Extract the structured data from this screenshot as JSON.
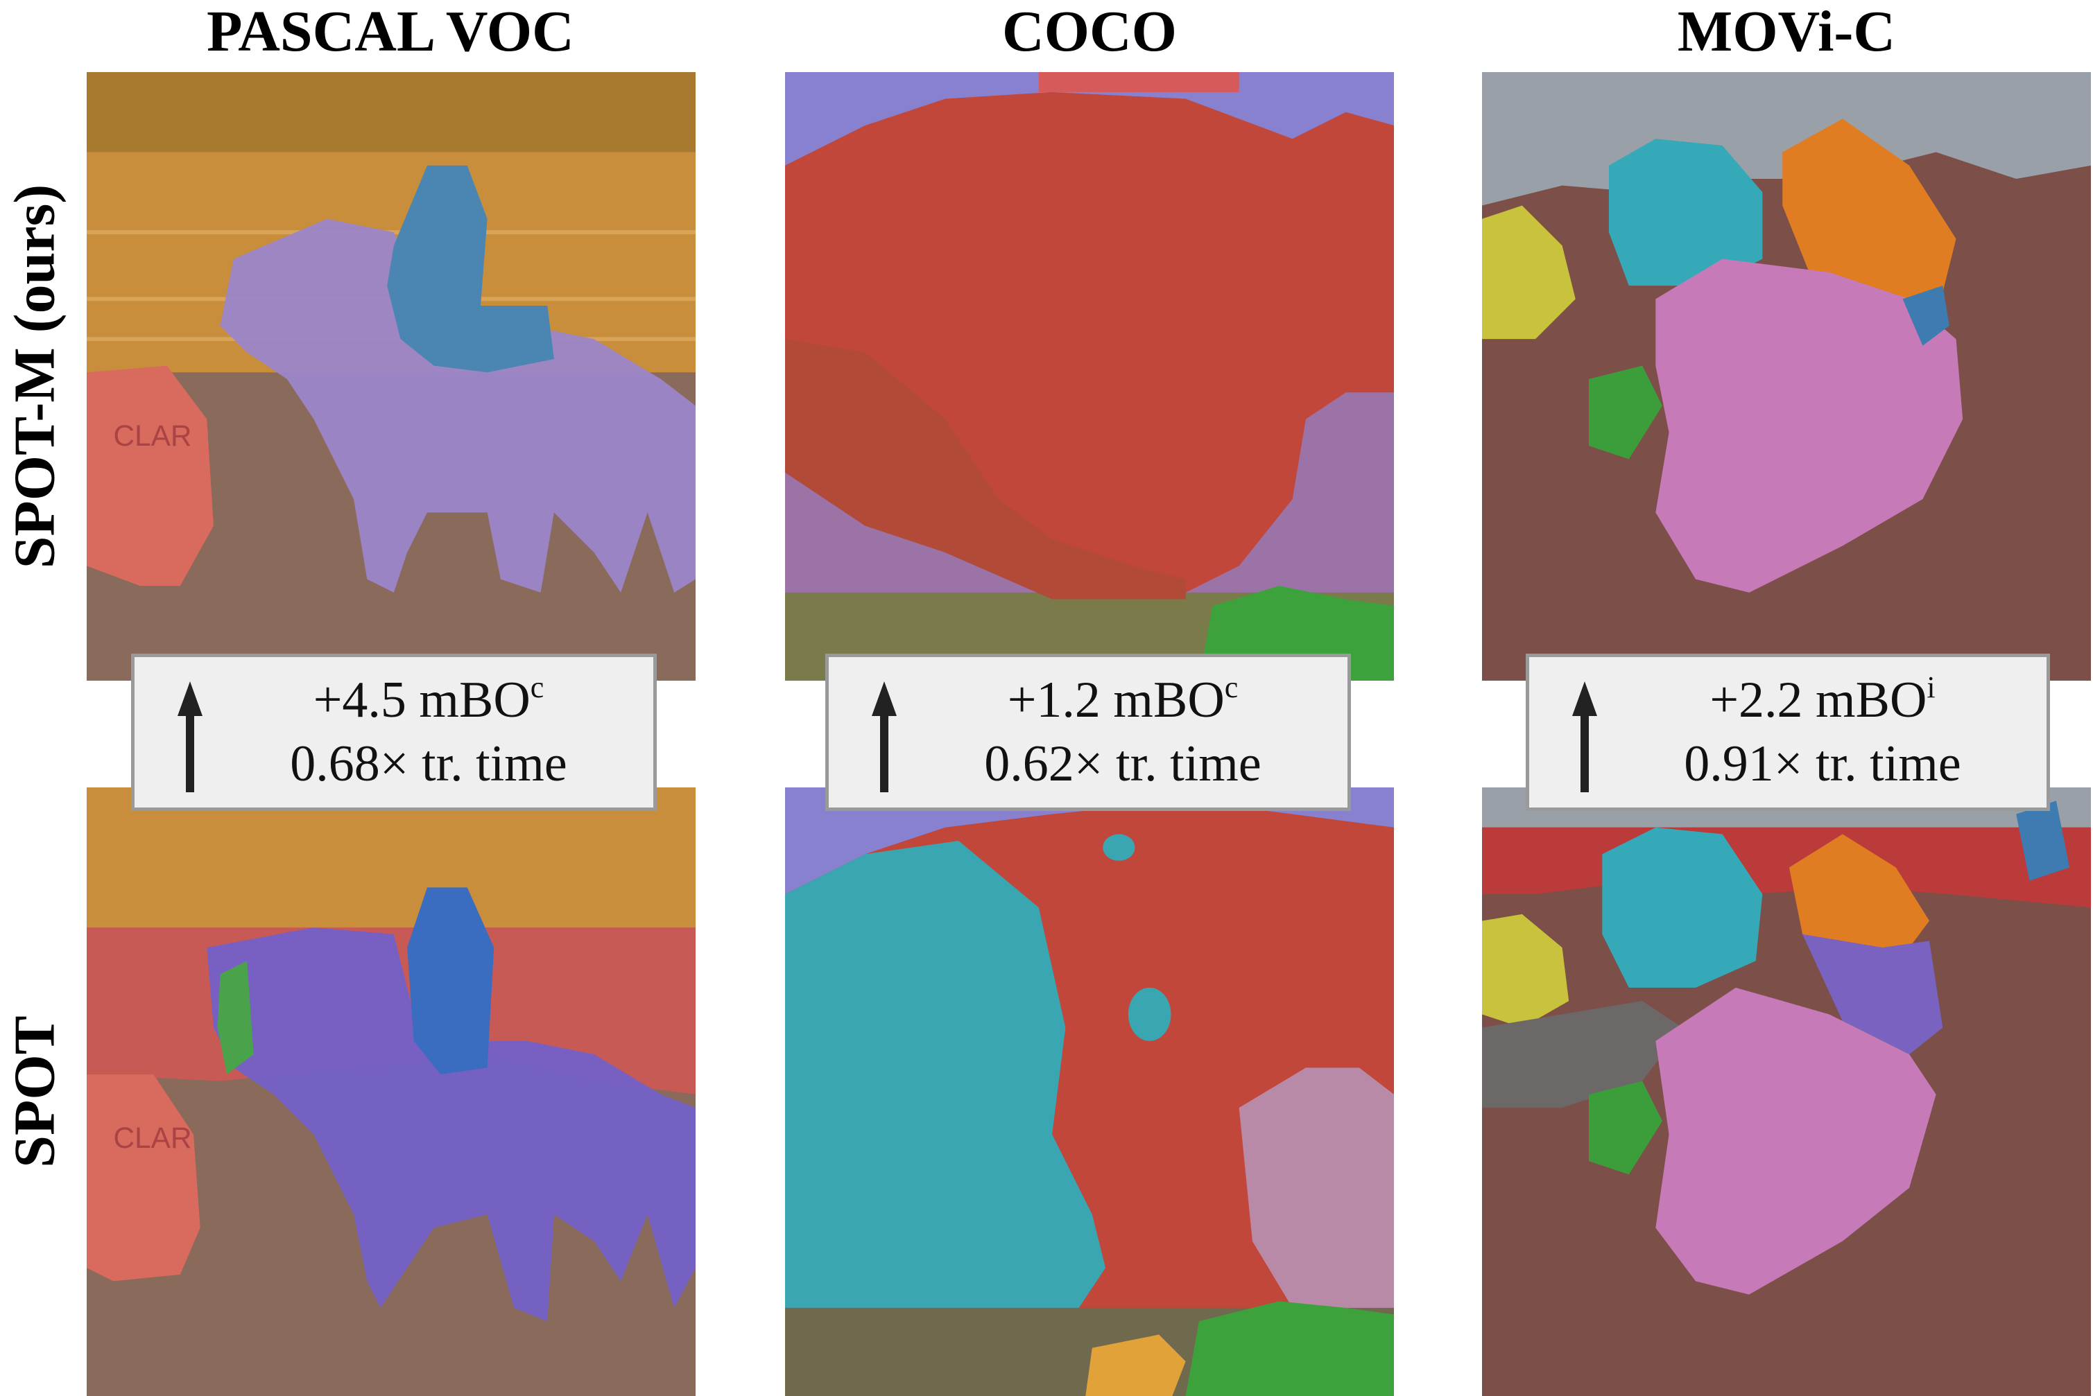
{
  "columns": [
    {
      "title": "PASCAL VOC",
      "callout": {
        "metric_value": "+4.5 mBO",
        "metric_superscript": "c",
        "time": "0.68× tr. time"
      }
    },
    {
      "title": "COCO",
      "callout": {
        "metric_value": "+1.2 mBO",
        "metric_superscript": "c",
        "time": "0.62× tr. time"
      }
    },
    {
      "title": "MOVi-C",
      "callout": {
        "metric_value": "+2.2 mBO",
        "metric_superscript": "i",
        "time": "0.91× tr. time"
      }
    }
  ],
  "rows": [
    {
      "label": "SPOT-M (ours)"
    },
    {
      "label": "SPOT"
    }
  ],
  "callout_icon": "arrow-up-icon",
  "colors": {
    "callout_bg": "#efefef",
    "callout_border": "#9a9a9a"
  }
}
